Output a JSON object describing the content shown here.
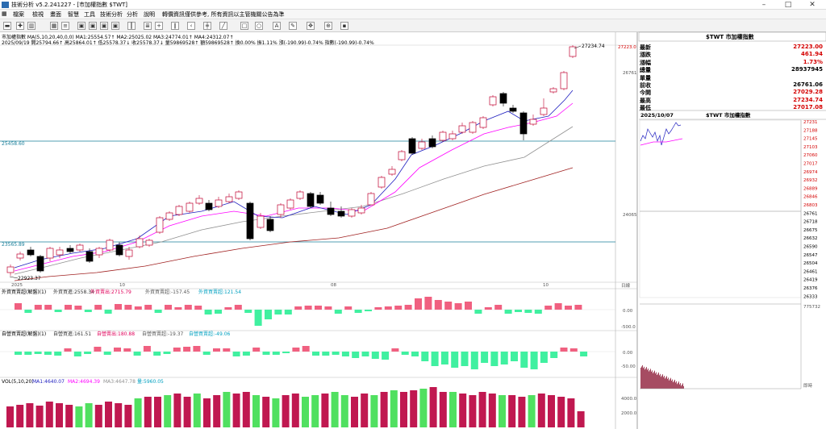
{
  "window": {
    "title": "技術分析 v5.2.241227 - [市加權指數 $TWT]"
  },
  "menu": [
    "檔案",
    "檢視",
    "畫面",
    "智慧",
    "工具",
    "技術分析",
    "分析",
    "說明"
  ],
  "notice": "轉價資訊僅供參考, 所有資訊以主管機關公告為準",
  "chart_info": {
    "line1": "市加權指數  MA(5,10,20,40,0,0)  MA1:25554.57↑  MA2:25025.02  MA3:24774.01↑  MA4:24312.07↑",
    "line2": "2025/09/19  開25794.66↑  高25864.01↑  低25578.37↓  收25578.37↓  量59869528↑  額59869528↑  換0.00%  振1.11%  漲(-190.99)-0.74%  指數(-190.99)-0.74%"
  },
  "main_chart": {
    "annotations": {
      "high_label": "27234.74",
      "low_label": "22923.37",
      "hline_upper": "25458.60",
      "hline_lower": "23565.89"
    },
    "x_labels": [
      "2025",
      "10",
      "08",
      "10"
    ],
    "x_end_label": "日線",
    "y_labels_right": [
      "27223.0",
      "26761",
      "24065"
    ]
  },
  "panels": {
    "foreign": {
      "title": "外資買賣超(解盤)(1)",
      "items": [
        "外資買進:2558.34",
        "外資賣出:2715.79",
        "外資買賣超:-157.45",
        "外資買賣超:121.54"
      ],
      "ticks": [
        "0.00",
        "-500.0"
      ]
    },
    "prop": {
      "title": "自營買賣超(解盤)(1)",
      "items": [
        "自營買進:161.51",
        "自營賣出:180.88",
        "自營買賣超:-19.37",
        "自營買賣超:-49.06"
      ],
      "ticks": [
        "0.00",
        "-50.00"
      ]
    },
    "vol": {
      "title": "VOL(5,10,20)",
      "items": [
        "MA1:4640.07",
        "MA2:4694.39",
        "MA3:4647.78",
        "量:5960.05"
      ],
      "ticks": [
        "4000.0",
        "2000.0"
      ]
    }
  },
  "quote": {
    "title": "$TWT 市加權指數",
    "rows": [
      {
        "label": "最新",
        "value": "27223.00",
        "color": "#d40000"
      },
      {
        "label": "漲跌",
        "value": "461.94",
        "color": "#d40000"
      },
      {
        "label": "漲幅",
        "value": "1.73%",
        "color": "#d40000"
      },
      {
        "label": "總量",
        "value": "28937945",
        "color": "#000000"
      },
      {
        "label": "單量",
        "value": "",
        "color": "#000000"
      },
      {
        "label": "前收",
        "value": "26761.06",
        "color": "#000000"
      },
      {
        "label": "今開",
        "value": "27029.28",
        "color": "#d40000"
      },
      {
        "label": "最高",
        "value": "27234.74",
        "color": "#d40000"
      },
      {
        "label": "最低",
        "value": "27017.08",
        "color": "#d40000"
      }
    ]
  },
  "intraday": {
    "date": "2025/10/07",
    "title": "$TWT 市加權指數",
    "y_ticks": [
      "27231",
      "27188",
      "27145",
      "27103",
      "27060",
      "27017",
      "26974",
      "26932",
      "26889",
      "26846",
      "26803",
      "26761",
      "26718",
      "26675",
      "26632",
      "26590",
      "26547",
      "26504",
      "26461",
      "26419",
      "26376",
      "26333"
    ],
    "vol_label": "775732",
    "bottom_label": "即時"
  },
  "colors": {
    "up": "#e0005a",
    "down": "#000000",
    "green": "#40e070",
    "ma1": "#2020c0",
    "ma2": "#ff00ff",
    "ma3": "#909090",
    "ma4": "#a02020"
  }
}
